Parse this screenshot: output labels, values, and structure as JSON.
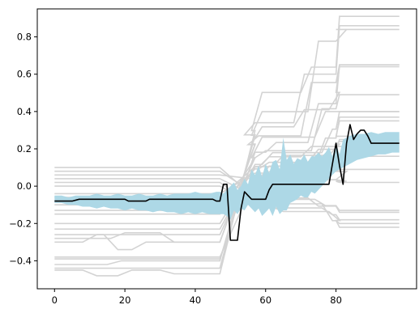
{
  "chart_data": {
    "type": "line",
    "title": "",
    "xlabel": "",
    "ylabel": "",
    "xlim": [
      -4.9,
      102.9
    ],
    "ylim": [
      -0.55,
      0.95
    ],
    "grid": false,
    "legend": "none",
    "x_ticks": [
      0,
      20,
      40,
      60,
      80
    ],
    "x_tick_labels": [
      "0",
      "20",
      "40",
      "60",
      "80"
    ],
    "y_ticks": [
      -0.4,
      -0.2,
      0.0,
      0.2,
      0.4,
      0.6,
      0.8
    ],
    "y_tick_labels": [
      "−0.4",
      "−0.2",
      "0.0",
      "0.2",
      "0.4",
      "0.6",
      "0.8"
    ],
    "colors": {
      "background_lines": "#d3d3d3",
      "band": "#add8e6",
      "main_line": "#000000",
      "axes": "#000000"
    },
    "background_lines": [
      {
        "offset": -0.45,
        "delta": 1.36,
        "flats": [
          [
            8,
            -0.03
          ],
          [
            18,
            0.0
          ],
          [
            30,
            -0.02
          ]
        ],
        "ups": [
          [
            56,
            0.15
          ],
          [
            70,
            0.1
          ]
        ]
      },
      {
        "offset": -0.44,
        "delta": 1.3,
        "flats": [
          [
            12,
            0.0
          ],
          [
            24,
            0.0
          ]
        ],
        "ups": [
          [
            54,
            0.05
          ],
          [
            68,
            0.2
          ]
        ]
      },
      {
        "offset": -0.42,
        "delta": 1.26,
        "flats": [
          [
            15,
            0.02
          ]
        ],
        "ups": [
          [
            56,
            0.1
          ],
          [
            72,
            0.3
          ],
          [
            80,
            0.1
          ]
        ]
      },
      {
        "offset": -0.39,
        "delta": 1.04,
        "flats": [
          [
            7,
            0.0
          ],
          [
            20,
            0.0
          ]
        ],
        "ups": [
          [
            60,
            0.05
          ],
          [
            72,
            0.2
          ]
        ]
      },
      {
        "offset": -0.38,
        "delta": 0.75,
        "flats": [
          [
            10,
            0.0
          ],
          [
            28,
            0.0
          ]
        ],
        "ups": [
          [
            58,
            0.1
          ],
          [
            74,
            0.2
          ]
        ]
      },
      {
        "offset": -0.3,
        "delta": 0.95,
        "flats": [
          [
            8,
            0.04
          ],
          [
            14,
            -0.04
          ],
          [
            22,
            0.0
          ]
        ],
        "ups": [
          [
            55,
            0.05
          ],
          [
            70,
            0.3
          ]
        ]
      },
      {
        "offset": -0.28,
        "delta": 0.92,
        "flats": [
          [
            16,
            0.03
          ],
          [
            30,
            -0.02
          ]
        ],
        "ups": [
          [
            56,
            0.1
          ],
          [
            68,
            0.1
          ],
          [
            78,
            0.1
          ]
        ]
      },
      {
        "offset": -0.26,
        "delta": 0.75,
        "flats": [
          [
            12,
            0.0
          ],
          [
            34,
            0.0
          ]
        ],
        "ups": [
          [
            57,
            0.05
          ],
          [
            73,
            0.3
          ]
        ]
      },
      {
        "offset": -0.23,
        "delta": 0.63,
        "flats": [
          [
            18,
            0.0
          ]
        ],
        "ups": [
          [
            59,
            0.1
          ],
          [
            76,
            0.2
          ]
        ]
      },
      {
        "offset": -0.2,
        "delta": 0.55,
        "flats": [
          [
            14,
            0.0
          ],
          [
            36,
            0.0
          ]
        ],
        "ups": [
          [
            58,
            0.1
          ],
          [
            70,
            0.1
          ],
          [
            82,
            0.1
          ]
        ]
      },
      {
        "offset": -0.15,
        "delta": 0.55,
        "flats": [
          [
            10,
            0.0
          ]
        ],
        "ups": [
          [
            56,
            0.2
          ],
          [
            74,
            0.3
          ]
        ]
      },
      {
        "offset": -0.13,
        "delta": 0.22,
        "flats": [
          [
            20,
            0.0
          ],
          [
            30,
            0.0
          ]
        ],
        "ups": [
          [
            60,
            0.2
          ],
          [
            80,
            0.2
          ]
        ]
      },
      {
        "offset": -0.1,
        "delta": 0.35,
        "flats": [
          [
            14,
            0.0
          ]
        ],
        "ups": [
          [
            58,
            0.1
          ],
          [
            72,
            0.2
          ]
        ]
      },
      {
        "offset": -0.06,
        "delta": 0.3,
        "flats": [
          [
            22,
            0.0
          ]
        ],
        "ups": [
          [
            62,
            0.2
          ],
          [
            78,
            0.2
          ]
        ]
      },
      {
        "offset": -0.04,
        "delta": 0.2,
        "flats": [
          [
            8,
            0.0
          ],
          [
            26,
            0.0
          ]
        ],
        "ups": [
          [
            60,
            0.1
          ],
          [
            76,
            0.2
          ]
        ]
      },
      {
        "offset": 0.0,
        "delta": -0.18,
        "flats": [
          [
            10,
            0.0
          ],
          [
            18,
            0.0
          ],
          [
            26,
            0.0
          ],
          [
            34,
            0.0
          ],
          [
            42,
            0.0
          ]
        ],
        "ups": [
          [
            60,
            0.1
          ],
          [
            76,
            0.2
          ]
        ]
      },
      {
        "offset": 0.02,
        "delta": -0.24,
        "flats": [
          [
            14,
            0.0
          ],
          [
            22,
            0.0
          ],
          [
            30,
            0.0
          ]
        ],
        "ups": [
          [
            62,
            0.1
          ],
          [
            78,
            0.2
          ]
        ]
      },
      {
        "offset": 0.04,
        "delta": -0.17,
        "flats": [
          [
            12,
            0.0
          ],
          [
            28,
            0.0
          ]
        ],
        "ups": [
          [
            58,
            0.1
          ],
          [
            74,
            0.2
          ]
        ]
      },
      {
        "offset": 0.06,
        "delta": -0.04,
        "flats": [
          [
            16,
            0.0
          ],
          [
            36,
            0.0
          ]
        ],
        "ups": [
          [
            60,
            0.1
          ],
          [
            80,
            0.2
          ]
        ]
      },
      {
        "offset": 0.08,
        "delta": -0.22,
        "flats": [
          [
            10,
            0.0
          ],
          [
            20,
            0.0
          ],
          [
            30,
            0.0
          ],
          [
            40,
            0.0
          ]
        ],
        "ups": [
          [
            58,
            0.1
          ],
          [
            72,
            0.2
          ]
        ]
      },
      {
        "offset": 0.1,
        "delta": -0.3,
        "flats": [
          [
            18,
            0.0
          ],
          [
            32,
            0.0
          ]
        ],
        "ups": [
          [
            60,
            0.1
          ],
          [
            76,
            0.3
          ]
        ]
      }
    ],
    "band_x": [
      0,
      2,
      4,
      6,
      8,
      10,
      12,
      14,
      16,
      18,
      20,
      22,
      24,
      26,
      28,
      30,
      32,
      34,
      36,
      38,
      40,
      42,
      44,
      46,
      47,
      48,
      49,
      50,
      51,
      52,
      53,
      54,
      55,
      56,
      57,
      58,
      59,
      60,
      61,
      62,
      63,
      64,
      65,
      66,
      67,
      68,
      69,
      70,
      71,
      72,
      73,
      74,
      75,
      76,
      77,
      78,
      79,
      80,
      81,
      82,
      84,
      86,
      88,
      90,
      92,
      94,
      96,
      98
    ],
    "band_upper": [
      -0.05,
      -0.05,
      -0.06,
      -0.05,
      -0.05,
      -0.05,
      -0.04,
      -0.05,
      -0.05,
      -0.04,
      -0.05,
      -0.05,
      -0.04,
      -0.05,
      -0.05,
      -0.04,
      -0.05,
      -0.04,
      -0.04,
      -0.04,
      -0.03,
      -0.04,
      -0.04,
      -0.03,
      -0.03,
      -0.04,
      -0.02,
      0.0,
      0.02,
      -0.02,
      0.0,
      0.04,
      0.01,
      0.09,
      0.06,
      0.11,
      0.05,
      0.12,
      0.07,
      0.13,
      0.14,
      0.09,
      0.26,
      0.14,
      0.17,
      0.12,
      0.15,
      0.14,
      0.17,
      0.13,
      0.16,
      0.16,
      0.18,
      0.16,
      0.18,
      0.21,
      0.16,
      0.23,
      0.17,
      0.25,
      0.27,
      0.28,
      0.28,
      0.29,
      0.28,
      0.29,
      0.29,
      0.29
    ],
    "band_lower": [
      -0.09,
      -0.09,
      -0.1,
      -0.1,
      -0.11,
      -0.11,
      -0.12,
      -0.11,
      -0.12,
      -0.12,
      -0.13,
      -0.12,
      -0.13,
      -0.13,
      -0.14,
      -0.13,
      -0.14,
      -0.14,
      -0.15,
      -0.14,
      -0.15,
      -0.14,
      -0.15,
      -0.15,
      -0.15,
      -0.15,
      -0.16,
      -0.18,
      -0.13,
      -0.15,
      -0.12,
      -0.13,
      -0.1,
      -0.12,
      -0.14,
      -0.12,
      -0.16,
      -0.14,
      -0.12,
      -0.16,
      -0.11,
      -0.15,
      -0.13,
      -0.13,
      -0.09,
      -0.08,
      -0.07,
      -0.05,
      -0.06,
      -0.06,
      -0.03,
      -0.04,
      -0.02,
      0.0,
      0.02,
      0.04,
      0.06,
      0.08,
      0.09,
      0.1,
      0.12,
      0.14,
      0.15,
      0.16,
      0.17,
      0.17,
      0.18,
      0.18
    ],
    "main_line": {
      "x": [
        0,
        5,
        7,
        10,
        19,
        20,
        21,
        25,
        26,
        27,
        30,
        45,
        46,
        47,
        48,
        49,
        50,
        51,
        52,
        53,
        54,
        55,
        56,
        57,
        58,
        60,
        61,
        62,
        77,
        78,
        79,
        80,
        81,
        82,
        83,
        84,
        85,
        86,
        87,
        88,
        89,
        90,
        95,
        98
      ],
      "y": [
        -0.08,
        -0.08,
        -0.07,
        -0.07,
        -0.07,
        -0.07,
        -0.08,
        -0.08,
        -0.08,
        -0.07,
        -0.07,
        -0.07,
        -0.08,
        -0.08,
        0.01,
        0.01,
        -0.29,
        -0.29,
        -0.29,
        -0.12,
        -0.03,
        -0.05,
        -0.07,
        -0.07,
        -0.07,
        -0.07,
        -0.02,
        0.01,
        0.01,
        0.01,
        0.12,
        0.23,
        0.11,
        0.01,
        0.23,
        0.33,
        0.25,
        0.28,
        0.3,
        0.3,
        0.27,
        0.23,
        0.23,
        0.23
      ]
    }
  }
}
